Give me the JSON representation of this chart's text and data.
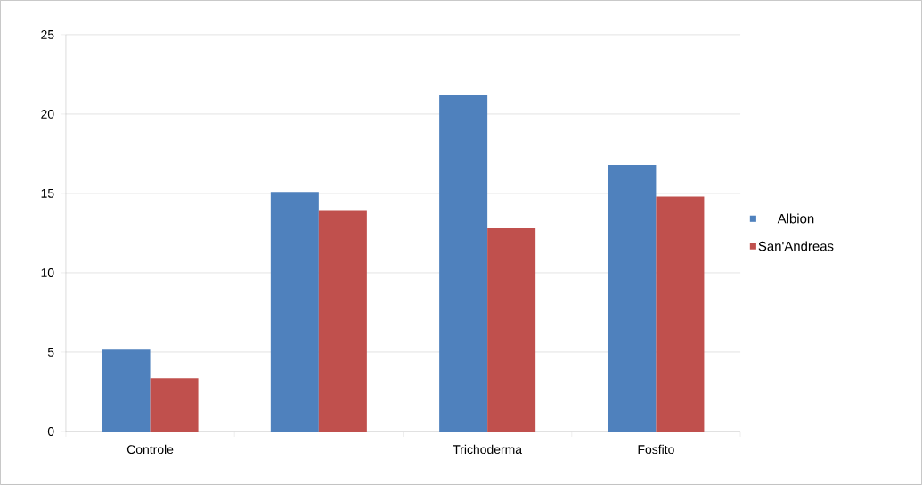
{
  "chart_data": {
    "type": "bar",
    "categories": [
      "Controle",
      null,
      "Trichoderma",
      "Fosfito"
    ],
    "series": [
      {
        "name": "Albion",
        "color": "#4f81bd",
        "values": [
          5.15,
          15.1,
          21.2,
          16.8
        ]
      },
      {
        "name": "San'Andreas",
        "color": "#c0504d",
        "values": [
          3.35,
          13.9,
          12.8,
          14.8
        ]
      }
    ],
    "ylim": [
      0,
      25
    ],
    "yticks": [
      0,
      5,
      10,
      15,
      20,
      25
    ],
    "grid": "y",
    "legend": "right"
  }
}
